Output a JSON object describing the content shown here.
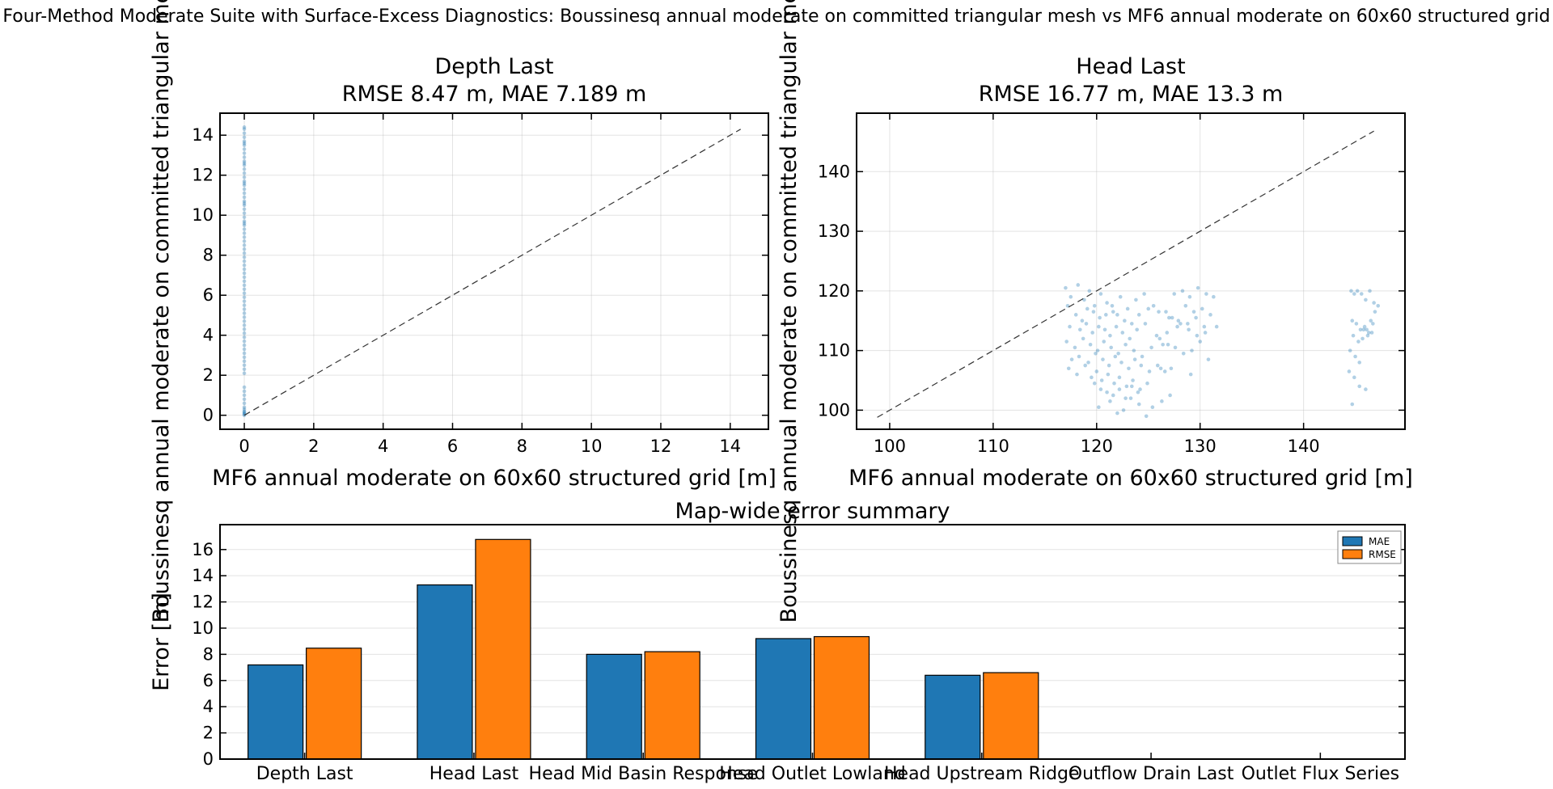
{
  "suptitle": "Four-Method Moderate Suite with Surface-Excess Diagnostics: Boussinesq annual moderate on committed triangular mesh vs MF6 annual moderate on 60x60 structured grid",
  "colors": {
    "mae": "#1f77b4",
    "rmse": "#ff7f0e",
    "points": "#1f77b4",
    "identity": "#333333"
  },
  "chart_data": [
    {
      "type": "scatter",
      "title": "Depth Last",
      "subtitle": "RMSE 8.47 m, MAE 7.189 m",
      "xlabel": "MF6 annual moderate on 60x60 structured grid [m]",
      "ylabel": "Boussinesq annual moderate on committed triangular mesh [m]",
      "xlim": [
        -0.7,
        15.1
      ],
      "ylim": [
        -0.7,
        15.1
      ],
      "xticks": [
        0,
        2,
        4,
        6,
        8,
        10,
        12,
        14
      ],
      "yticks": [
        0,
        2,
        4,
        6,
        8,
        10,
        12,
        14
      ],
      "identity_line": [
        0,
        14.3
      ],
      "grid": true,
      "x": [
        0,
        0,
        0,
        0,
        0,
        0,
        0,
        0,
        0,
        0,
        0,
        0,
        0,
        0,
        0,
        0,
        0,
        0,
        0,
        0,
        0,
        0,
        0,
        0,
        0,
        0,
        0,
        0,
        0,
        0,
        0,
        0,
        0,
        0,
        0,
        0,
        0,
        0,
        0,
        0,
        0,
        0,
        0,
        0,
        0,
        0,
        0,
        0,
        0,
        0,
        0,
        0,
        0,
        0,
        0,
        0,
        0,
        0,
        0,
        0,
        0,
        0,
        0,
        0,
        0,
        0,
        0,
        0,
        0,
        0,
        0,
        0,
        0,
        0,
        0,
        0,
        0,
        0,
        0,
        0
      ],
      "y": [
        0.0,
        0.05,
        0.1,
        0.15,
        0.2,
        0.3,
        0.4,
        0.6,
        0.8,
        1.0,
        1.2,
        1.4,
        2.1,
        2.3,
        2.5,
        2.7,
        2.9,
        3.1,
        3.3,
        3.5,
        3.7,
        3.9,
        4.1,
        4.3,
        4.5,
        4.7,
        4.9,
        5.1,
        5.3,
        5.5,
        5.7,
        5.9,
        6.1,
        6.3,
        6.5,
        6.7,
        6.9,
        7.1,
        7.3,
        7.5,
        7.7,
        7.9,
        8.1,
        8.3,
        8.5,
        8.7,
        8.9,
        9.1,
        9.3,
        9.5,
        9.7,
        9.9,
        10.1,
        10.3,
        10.5,
        10.7,
        10.9,
        11.1,
        11.3,
        11.5,
        11.7,
        11.9,
        12.1,
        12.3,
        12.5,
        12.7,
        12.9,
        13.1,
        13.3,
        13.5,
        13.7,
        13.9,
        14.1,
        14.3,
        9.6,
        10.6,
        11.6,
        12.6,
        13.6,
        14.4
      ]
    },
    {
      "type": "scatter",
      "title": "Head Last",
      "subtitle": "RMSE 16.77 m, MAE 13.3 m",
      "xlabel": "MF6 annual moderate on 60x60 structured grid [m]",
      "ylabel": "Boussinesq annual moderate on committed triangular mesh [m]",
      "xlim": [
        96.8,
        149.8
      ],
      "ylim": [
        96.8,
        149.8
      ],
      "xticks": [
        100,
        110,
        120,
        130,
        140
      ],
      "yticks": [
        100,
        110,
        120,
        130,
        140
      ],
      "identity_line": [
        98.8,
        146.8
      ],
      "grid": true,
      "x": [
        117.0,
        117.5,
        118.2,
        118.8,
        119.3,
        119.8,
        120.4,
        121.0,
        121.6,
        122.3,
        123.0,
        123.8,
        124.6,
        125.5,
        117.2,
        118.0,
        118.6,
        119.1,
        119.7,
        120.3,
        120.9,
        121.5,
        122.0,
        122.7,
        123.4,
        124.1,
        125.0,
        126.0,
        127.0,
        117.4,
        118.4,
        119.0,
        119.6,
        120.2,
        120.8,
        121.3,
        121.9,
        122.5,
        123.2,
        123.9,
        124.7,
        125.8,
        126.8,
        127.8,
        117.1,
        117.9,
        118.7,
        119.4,
        120.1,
        120.7,
        121.4,
        122.1,
        122.8,
        123.6,
        124.4,
        125.3,
        126.4,
        117.6,
        118.3,
        119.2,
        119.9,
        120.6,
        121.2,
        121.8,
        122.4,
        123.1,
        123.7,
        124.3,
        125.1,
        126.2,
        117.3,
        118.1,
        118.9,
        119.5,
        120.0,
        120.5,
        121.1,
        121.7,
        122.2,
        122.9,
        123.5,
        124.2,
        124.9,
        127.5,
        128.3,
        129.0,
        129.8,
        130.6,
        131.3,
        128.6,
        129.4,
        130.2,
        131.0,
        127.9,
        128.8,
        129.6,
        130.4,
        126.7,
        127.3,
        128.1,
        128.9,
        129.7,
        130.5,
        131.6,
        126.1,
        126.9,
        127.6,
        128.4,
        129.2,
        130.0,
        130.8,
        125.9,
        126.6,
        127.2,
        129.1,
        119.8,
        120.4,
        121.0,
        121.6,
        122.2,
        122.8,
        123.4,
        124.0,
        120.2,
        121.3,
        122.0,
        122.6,
        123.3,
        124.1,
        124.8,
        125.4,
        126.3,
        127.1,
        144.6,
        144.9,
        145.2,
        145.6,
        146.0,
        146.4,
        146.8,
        147.2,
        144.7,
        145.1,
        145.5,
        145.9,
        146.3,
        146.7,
        144.8,
        145.3,
        145.8,
        146.2,
        146.6,
        144.5,
        145.0,
        145.4,
        145.7,
        146.1,
        146.5,
        146.9,
        144.4,
        144.9,
        145.4,
        146.0,
        144.7
      ],
      "y": [
        120.5,
        119.0,
        121.0,
        118.5,
        120.0,
        117.5,
        119.5,
        118.0,
        116.5,
        119.0,
        117.0,
        118.5,
        119.5,
        117.5,
        117.5,
        116.0,
        115.0,
        117.0,
        116.5,
        115.5,
        116.0,
        117.5,
        116.0,
        115.0,
        114.5,
        116.0,
        117.0,
        116.5,
        115.5,
        114.0,
        113.5,
        114.5,
        113.0,
        114.0,
        113.5,
        112.5,
        114.0,
        113.0,
        112.0,
        113.5,
        114.5,
        112.5,
        113.0,
        114.0,
        111.5,
        110.5,
        112.0,
        111.0,
        110.0,
        111.5,
        110.5,
        109.5,
        111.0,
        110.0,
        109.0,
        110.5,
        111.0,
        108.5,
        109.0,
        108.0,
        109.5,
        108.5,
        107.5,
        109.0,
        108.0,
        107.0,
        108.5,
        107.5,
        106.5,
        107.0,
        107.0,
        106.0,
        107.5,
        105.5,
        106.5,
        105.0,
        106.0,
        104.5,
        105.5,
        104.0,
        105.0,
        103.5,
        104.5,
        119.5,
        120.0,
        119.0,
        120.5,
        119.5,
        119.0,
        117.5,
        116.5,
        117.0,
        116.0,
        115.0,
        114.5,
        115.5,
        114.0,
        116.5,
        115.5,
        114.5,
        113.5,
        112.5,
        113.0,
        114.0,
        112.0,
        111.0,
        110.5,
        109.5,
        110.0,
        111.5,
        108.5,
        107.5,
        106.5,
        107.0,
        106.0,
        104.5,
        103.5,
        103.0,
        102.5,
        103.5,
        102.0,
        104.0,
        103.0,
        100.5,
        101.5,
        99.5,
        100.0,
        102.0,
        101.0,
        99.0,
        100.5,
        101.5,
        102.5,
        120.0,
        119.5,
        120.0,
        119.5,
        118.5,
        120.0,
        118.0,
        117.5,
        115.0,
        114.5,
        113.5,
        114.0,
        113.0,
        114.5,
        112.5,
        111.5,
        113.5,
        112.5,
        113.0,
        110.0,
        109.0,
        108.0,
        112.0,
        113.5,
        115.0,
        116.5,
        106.5,
        105.5,
        104.0,
        103.5,
        101.0
      ]
    },
    {
      "type": "bar",
      "title": "Map-wide error summary",
      "xlabel": "",
      "ylabel": "Error [m]",
      "ylim": [
        0,
        17.9
      ],
      "yticks": [
        0,
        2,
        4,
        6,
        8,
        10,
        12,
        14,
        16
      ],
      "categories": [
        "Depth Last",
        "Head Last",
        "Head Mid Basin Response",
        "Head Outlet Lowland",
        "Head Upstream Ridge",
        "Outflow Drain Last",
        "Outlet Flux Series"
      ],
      "series": [
        {
          "name": "MAE",
          "values": [
            7.19,
            13.3,
            8.0,
            9.2,
            6.4,
            0,
            0
          ]
        },
        {
          "name": "RMSE",
          "values": [
            8.47,
            16.77,
            8.2,
            9.35,
            6.6,
            0,
            0
          ]
        }
      ],
      "legend": "top-right",
      "grid": true
    }
  ]
}
